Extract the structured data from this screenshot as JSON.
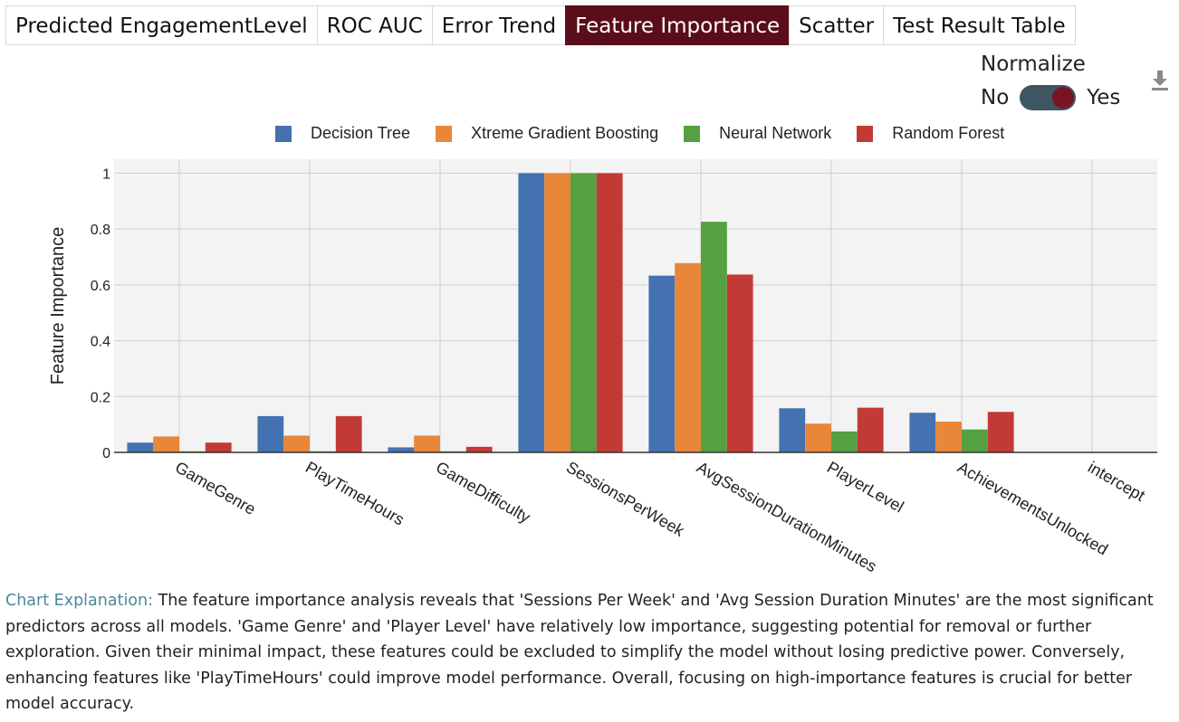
{
  "tabs": [
    {
      "label": "Predicted EngagementLevel",
      "active": false
    },
    {
      "label": "ROC AUC",
      "active": false
    },
    {
      "label": "Error Trend",
      "active": false
    },
    {
      "label": "Feature Importance",
      "active": true
    },
    {
      "label": "Scatter",
      "active": false
    },
    {
      "label": "Test Result Table",
      "active": false
    }
  ],
  "controls": {
    "normalize_label": "Normalize",
    "no_label": "No",
    "yes_label": "Yes",
    "normalize_on": true,
    "download_icon": "download-icon"
  },
  "chart_data": {
    "type": "bar",
    "ylabel": "Feature Importance",
    "ylim": [
      0,
      1.05
    ],
    "yticks": [
      0,
      0.2,
      0.4,
      0.6,
      0.8,
      1
    ],
    "ytick_labels": [
      "0",
      "0.2",
      "0.4",
      "0.6",
      "0.8",
      "1"
    ],
    "categories": [
      "GameGenre",
      "PlayTimeHours",
      "GameDifficulty",
      "SessionsPerWeek",
      "AvgSessionDurationMinutes",
      "PlayerLevel",
      "AchievementsUnlocked",
      "intercept"
    ],
    "series": [
      {
        "name": "Decision Tree",
        "color": "#4472b0",
        "values": [
          0.035,
          0.13,
          0.018,
          1.0,
          0.633,
          0.158,
          0.142,
          0
        ]
      },
      {
        "name": "Xtreme Gradient Boosting",
        "color": "#e8863a",
        "values": [
          0.057,
          0.06,
          0.06,
          1.0,
          0.678,
          0.103,
          0.11,
          0
        ]
      },
      {
        "name": "Neural Network",
        "color": "#55a040",
        "values": [
          0.004,
          0.004,
          0.004,
          1.0,
          0.826,
          0.075,
          0.082,
          0
        ]
      },
      {
        "name": "Random Forest",
        "color": "#c23a36",
        "values": [
          0.035,
          0.13,
          0.02,
          1.0,
          0.637,
          0.16,
          0.145,
          0
        ]
      }
    ],
    "grid": true,
    "legend_position": "top"
  },
  "explanation": {
    "label": "Chart Explanation:",
    "text": "The feature importance analysis reveals that 'Sessions Per Week' and 'Avg Session Duration Minutes' are the most significant predictors across all models. 'Game Genre' and 'Player Level' have relatively low importance, suggesting potential for removal or further exploration. Given their minimal impact, these features could be excluded to simplify the model without losing predictive power. Conversely, enhancing features like 'PlayTimeHours' could improve model performance. Overall, focusing on high-importance features is crucial for better model accuracy."
  }
}
